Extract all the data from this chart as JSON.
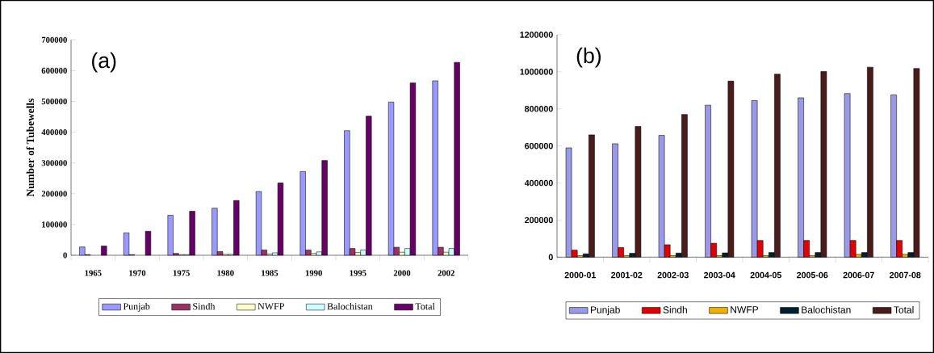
{
  "chart_data": [
    {
      "type": "bar",
      "ylabel": "Number of Tubewells",
      "annotations": [
        "(a)"
      ],
      "categories": [
        "1965",
        "1970",
        "1975",
        "1980",
        "1985",
        "1990",
        "1995",
        "2000",
        "2002"
      ],
      "series": [
        {
          "name": "Punjab",
          "color": "#9999ff",
          "values": [
            27000,
            73000,
            130000,
            153000,
            207000,
            272000,
            405000,
            498000,
            567000
          ]
        },
        {
          "name": "Sindh",
          "color": "#993366",
          "values": [
            2000,
            2000,
            6000,
            12000,
            17000,
            17000,
            22000,
            26000,
            26000
          ]
        },
        {
          "name": "NWFP",
          "color": "#ffffcc",
          "values": [
            null,
            null,
            2000,
            3000,
            4000,
            6000,
            9000,
            10000,
            10000
          ]
        },
        {
          "name": "Balochistan",
          "color": "#ccffff",
          "values": [
            null,
            null,
            2000,
            3000,
            8000,
            11000,
            17000,
            22000,
            22000
          ]
        },
        {
          "name": "Total",
          "color": "#660066",
          "values": [
            30000,
            78000,
            143000,
            178000,
            235000,
            308000,
            452000,
            560000,
            627000
          ]
        }
      ],
      "ylim": [
        0,
        700000
      ],
      "yticks": [
        0,
        100000,
        200000,
        300000,
        400000,
        500000,
        600000,
        700000
      ],
      "legend": "bottom"
    },
    {
      "type": "bar",
      "annotations": [
        "(b)"
      ],
      "categories": [
        "2000-01",
        "2001-02",
        "2002-03",
        "2003-04",
        "2004-05",
        "2005-06",
        "2006-07",
        "2007-08"
      ],
      "series": [
        {
          "name": "Punjab",
          "color": "#9999e6",
          "values": [
            590000,
            612000,
            657000,
            820000,
            845000,
            860000,
            883000,
            875000
          ]
        },
        {
          "name": "Sindh",
          "color": "#e00000",
          "values": [
            38000,
            52000,
            67000,
            75000,
            90000,
            90000,
            90000,
            90000
          ]
        },
        {
          "name": "NWFP",
          "color": "#f0b000",
          "values": [
            8000,
            8000,
            8000,
            8000,
            8000,
            8000,
            15000,
            15000
          ]
        },
        {
          "name": "Balochistan",
          "color": "#002030",
          "values": [
            18000,
            21000,
            22000,
            23000,
            25000,
            25000,
            25000,
            25000
          ]
        },
        {
          "name": "Total",
          "color": "#4a1c1c",
          "values": [
            660000,
            705000,
            770000,
            950000,
            987000,
            1002000,
            1025000,
            1018000
          ]
        }
      ],
      "ylim": [
        0,
        1200000
      ],
      "yticks": [
        0,
        200000,
        400000,
        600000,
        800000,
        1000000,
        1200000
      ],
      "legend": "bottom"
    }
  ]
}
